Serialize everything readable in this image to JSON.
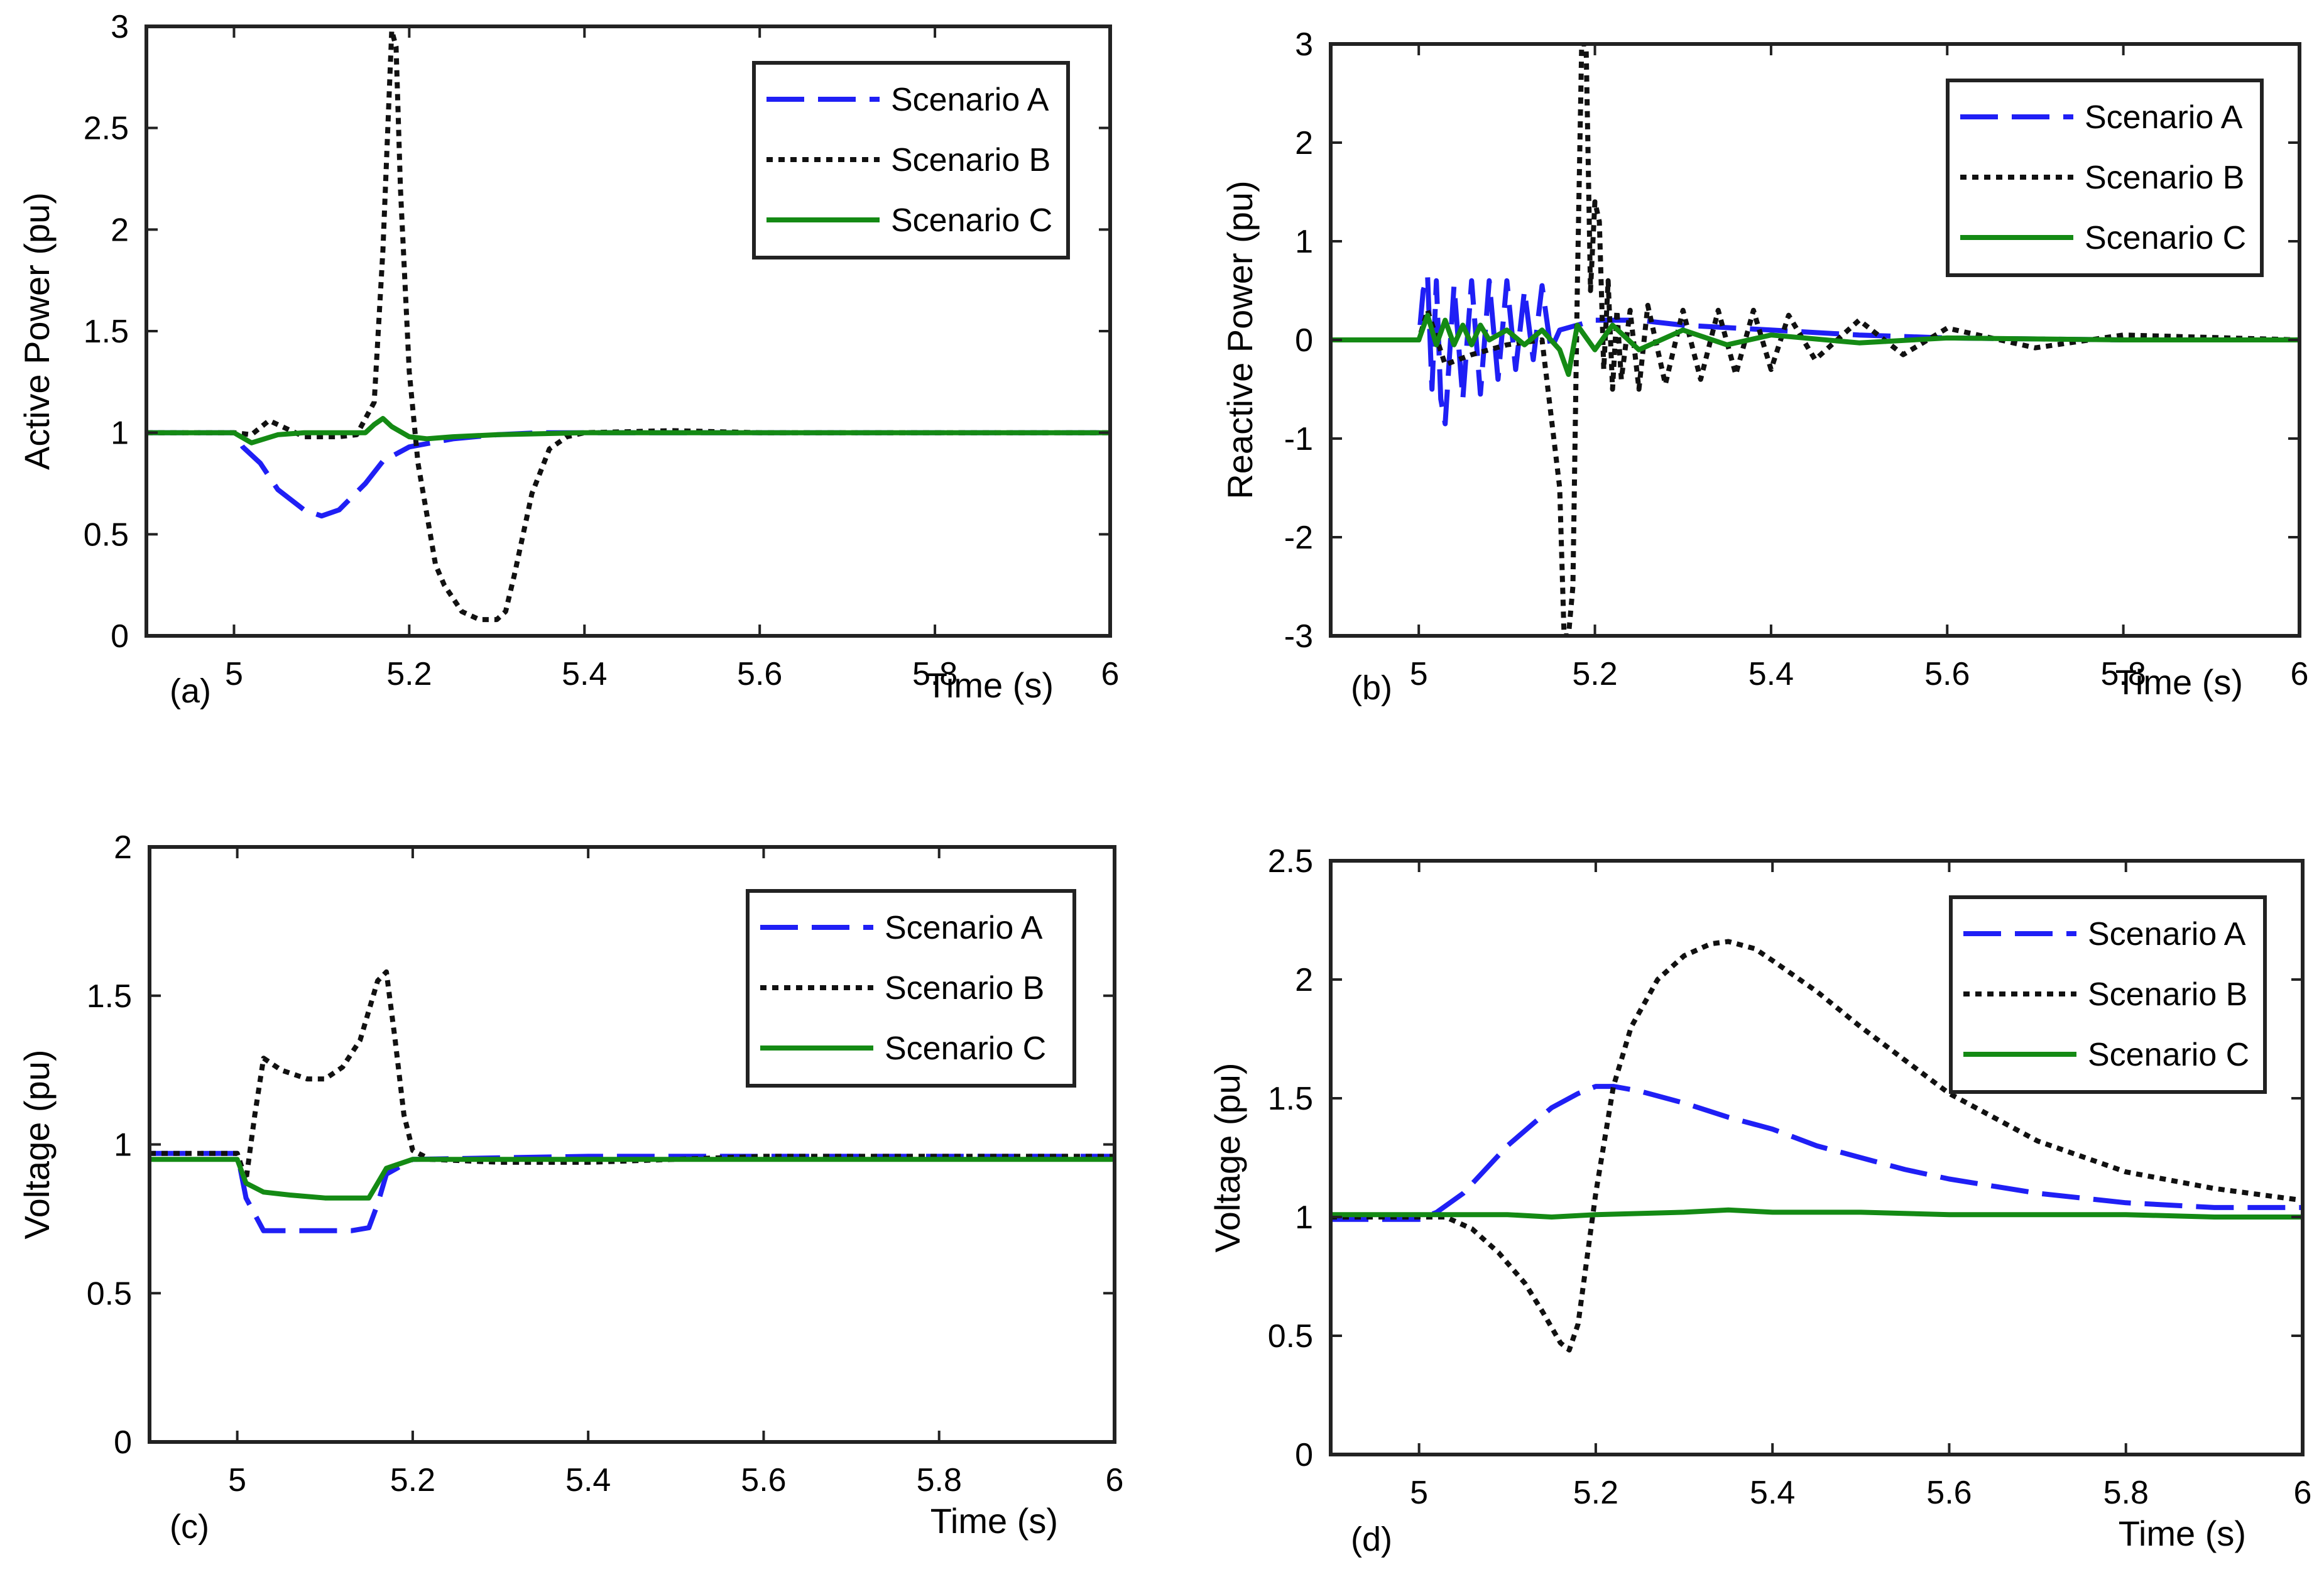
{
  "figure": {
    "series_names": [
      "Scenario A",
      "Scenario B",
      "Scenario C"
    ],
    "series_styles": [
      {
        "color": "#1f1ff5",
        "dash": "dashed"
      },
      {
        "color": "#111111",
        "dash": "dotted"
      },
      {
        "color": "#148a14",
        "dash": "solid"
      }
    ]
  },
  "chart_data": [
    {
      "type": "line",
      "panel_label": "(a)",
      "title": "",
      "xlabel": "Time (s)",
      "ylabel": "Active Power (pu)",
      "xlim": [
        4.9,
        6.0
      ],
      "ylim": [
        0,
        3
      ],
      "xticks": [
        5,
        5.2,
        5.4,
        5.6,
        5.8,
        6
      ],
      "xtick_labels": [
        "5",
        "5.2",
        "5.4",
        "5.6",
        "5.8",
        "6"
      ],
      "yticks": [
        0,
        0.5,
        1,
        1.5,
        2,
        2.5,
        3
      ],
      "ytick_labels": [
        "0",
        "0.5",
        "1",
        "1.5",
        "2",
        "2.5",
        "3"
      ],
      "legend": {
        "position": "top-right",
        "entries": [
          "Scenario A",
          "Scenario B",
          "Scenario C"
        ]
      },
      "series": [
        {
          "name": "Scenario A",
          "x": [
            4.9,
            5.0,
            5.01,
            5.03,
            5.05,
            5.08,
            5.1,
            5.12,
            5.15,
            5.17,
            5.2,
            5.25,
            5.3,
            5.35,
            5.4,
            5.6,
            5.8,
            6.0
          ],
          "y": [
            1.0,
            1.0,
            0.93,
            0.85,
            0.72,
            0.62,
            0.59,
            0.62,
            0.75,
            0.86,
            0.93,
            0.97,
            0.99,
            1.0,
            1.0,
            1.0,
            1.0,
            1.0
          ]
        },
        {
          "name": "Scenario B",
          "x": [
            4.9,
            5.0,
            5.02,
            5.04,
            5.06,
            5.08,
            5.1,
            5.12,
            5.14,
            5.16,
            5.17,
            5.18,
            5.185,
            5.19,
            5.2,
            5.21,
            5.22,
            5.23,
            5.24,
            5.26,
            5.28,
            5.3,
            5.31,
            5.32,
            5.34,
            5.36,
            5.38,
            5.4,
            5.5,
            5.6,
            5.8,
            6.0
          ],
          "y": [
            1.0,
            1.0,
            0.99,
            1.06,
            1.02,
            0.98,
            0.98,
            0.98,
            0.99,
            1.15,
            1.9,
            2.98,
            2.9,
            2.2,
            1.3,
            0.85,
            0.6,
            0.35,
            0.25,
            0.12,
            0.08,
            0.08,
            0.12,
            0.3,
            0.7,
            0.92,
            0.98,
            1.0,
            1.01,
            1.0,
            1.0,
            1.0
          ]
        },
        {
          "name": "Scenario C",
          "x": [
            4.9,
            5.0,
            5.02,
            5.05,
            5.08,
            5.1,
            5.15,
            5.16,
            5.17,
            5.18,
            5.2,
            5.22,
            5.25,
            5.3,
            5.4,
            5.6,
            5.8,
            6.0
          ],
          "y": [
            1.0,
            1.0,
            0.95,
            0.99,
            1.0,
            1.0,
            1.0,
            1.04,
            1.07,
            1.03,
            0.98,
            0.97,
            0.98,
            0.99,
            1.0,
            1.0,
            1.0,
            1.0
          ]
        }
      ]
    },
    {
      "type": "line",
      "panel_label": "(b)",
      "title": "",
      "xlabel": "Time (s)",
      "ylabel": "Reactive Power (pu)",
      "xlim": [
        4.9,
        6.0
      ],
      "ylim": [
        -3,
        3
      ],
      "xticks": [
        5,
        5.2,
        5.4,
        5.6,
        5.8,
        6
      ],
      "xtick_labels": [
        "5",
        "5.2",
        "5.4",
        "5.6",
        "5.8",
        "6"
      ],
      "yticks": [
        -3,
        -2,
        -1,
        0,
        1,
        2,
        3
      ],
      "ytick_labels": [
        "-3",
        "-2",
        "-1",
        "0",
        "1",
        "2",
        "3"
      ],
      "legend": {
        "position": "top-right",
        "entries": [
          "Scenario A",
          "Scenario B",
          "Scenario C"
        ]
      },
      "series": [
        {
          "name": "Scenario A",
          "x": [
            4.9,
            5.0,
            5.005,
            5.01,
            5.015,
            5.02,
            5.025,
            5.03,
            5.04,
            5.05,
            5.06,
            5.07,
            5.08,
            5.09,
            5.1,
            5.11,
            5.12,
            5.13,
            5.14,
            5.15,
            5.16,
            5.18,
            5.2,
            5.25,
            5.3,
            5.4,
            5.5,
            5.6,
            5.8,
            6.0
          ],
          "y": [
            0.0,
            0.0,
            0.5,
            0.65,
            -0.5,
            0.6,
            -0.6,
            -0.85,
            0.55,
            -0.6,
            0.6,
            -0.55,
            0.6,
            -0.4,
            0.6,
            -0.3,
            0.5,
            -0.2,
            0.55,
            -0.1,
            0.1,
            0.15,
            0.2,
            0.2,
            0.15,
            0.1,
            0.05,
            0.02,
            0.0,
            0.0
          ]
        },
        {
          "name": "Scenario B",
          "x": [
            4.9,
            5.0,
            5.01,
            5.03,
            5.06,
            5.1,
            5.14,
            5.16,
            5.165,
            5.17,
            5.175,
            5.18,
            5.185,
            5.19,
            5.195,
            5.2,
            5.205,
            5.21,
            5.215,
            5.22,
            5.225,
            5.23,
            5.24,
            5.25,
            5.26,
            5.28,
            5.3,
            5.32,
            5.34,
            5.36,
            5.38,
            5.4,
            5.42,
            5.45,
            5.5,
            5.55,
            5.6,
            5.7,
            5.8,
            6.0
          ],
          "y": [
            0.0,
            0.0,
            0.3,
            -0.25,
            -0.15,
            -0.05,
            0.0,
            -1.5,
            -3.0,
            -3.0,
            -2.5,
            0.5,
            3.0,
            3.0,
            0.5,
            1.4,
            1.2,
            -0.3,
            0.6,
            -0.5,
            0.3,
            -0.4,
            0.3,
            -0.5,
            0.35,
            -0.45,
            0.3,
            -0.4,
            0.3,
            -0.35,
            0.3,
            -0.3,
            0.25,
            -0.2,
            0.2,
            -0.15,
            0.12,
            -0.08,
            0.05,
            0.0
          ]
        },
        {
          "name": "Scenario C",
          "x": [
            4.9,
            5.0,
            5.01,
            5.02,
            5.03,
            5.04,
            5.05,
            5.06,
            5.07,
            5.08,
            5.1,
            5.12,
            5.14,
            5.16,
            5.17,
            5.18,
            5.2,
            5.22,
            5.25,
            5.3,
            5.35,
            5.4,
            5.5,
            5.6,
            5.8,
            6.0
          ],
          "y": [
            0.0,
            0.0,
            0.25,
            -0.05,
            0.2,
            -0.05,
            0.15,
            -0.05,
            0.15,
            0.0,
            0.1,
            -0.05,
            0.1,
            -0.1,
            -0.35,
            0.15,
            -0.1,
            0.15,
            -0.1,
            0.1,
            -0.05,
            0.05,
            -0.03,
            0.02,
            0.0,
            0.0
          ]
        }
      ]
    },
    {
      "type": "line",
      "panel_label": "(c)",
      "title": "",
      "xlabel": "Time (s)",
      "ylabel": "Voltage (pu)",
      "xlim": [
        4.9,
        6.0
      ],
      "ylim": [
        0,
        2
      ],
      "xticks": [
        5,
        5.2,
        5.4,
        5.6,
        5.8,
        6
      ],
      "xtick_labels": [
        "5",
        "5.2",
        "5.4",
        "5.6",
        "5.8",
        "6"
      ],
      "yticks": [
        0,
        0.5,
        1,
        1.5,
        2
      ],
      "ytick_labels": [
        "0",
        "0.5",
        "1",
        "1.5",
        "2"
      ],
      "legend": {
        "position": "top-right",
        "entries": [
          "Scenario A",
          "Scenario B",
          "Scenario  C"
        ]
      },
      "series": [
        {
          "name": "Scenario A",
          "x": [
            4.9,
            5.0,
            5.01,
            5.03,
            5.06,
            5.1,
            5.13,
            5.15,
            5.16,
            5.17,
            5.2,
            5.4,
            5.6,
            5.8,
            6.0
          ],
          "y": [
            0.97,
            0.97,
            0.82,
            0.71,
            0.71,
            0.71,
            0.71,
            0.72,
            0.8,
            0.9,
            0.95,
            0.96,
            0.96,
            0.96,
            0.96
          ]
        },
        {
          "name": "Scenario B",
          "x": [
            4.9,
            5.0,
            5.01,
            5.02,
            5.03,
            5.05,
            5.08,
            5.1,
            5.12,
            5.14,
            5.16,
            5.17,
            5.18,
            5.19,
            5.2,
            5.22,
            5.3,
            5.4,
            5.6,
            5.8,
            6.0
          ],
          "y": [
            0.97,
            0.97,
            0.88,
            1.1,
            1.29,
            1.25,
            1.22,
            1.22,
            1.26,
            1.35,
            1.55,
            1.58,
            1.35,
            1.1,
            0.98,
            0.95,
            0.94,
            0.94,
            0.96,
            0.96,
            0.96
          ]
        },
        {
          "name": "Scenario C",
          "x": [
            4.9,
            5.0,
            5.01,
            5.03,
            5.06,
            5.1,
            5.13,
            5.15,
            5.16,
            5.17,
            5.2,
            5.4,
            5.6,
            5.8,
            6.0
          ],
          "y": [
            0.95,
            0.95,
            0.87,
            0.84,
            0.83,
            0.82,
            0.82,
            0.82,
            0.87,
            0.92,
            0.95,
            0.95,
            0.95,
            0.95,
            0.95
          ]
        }
      ]
    },
    {
      "type": "line",
      "panel_label": "(d)",
      "title": "",
      "xlabel": "Time (s)",
      "ylabel": "Voltage (pu)",
      "xlim": [
        4.9,
        6.0
      ],
      "ylim": [
        0,
        2.5
      ],
      "xticks": [
        5,
        5.2,
        5.4,
        5.6,
        5.8,
        6
      ],
      "xtick_labels": [
        "5",
        "5.2",
        "5.4",
        "5.6",
        "5.8",
        "6"
      ],
      "yticks": [
        0,
        0.5,
        1,
        1.5,
        2,
        2.5
      ],
      "ytick_labels": [
        "0",
        "0.5",
        "1",
        "1.5",
        "2",
        "2.5"
      ],
      "legend": {
        "position": "top-right",
        "entries": [
          "Scenario A",
          "Scenario B",
          "Scenario C"
        ]
      },
      "series": [
        {
          "name": "Scenario A",
          "x": [
            4.9,
            5.0,
            5.02,
            5.05,
            5.1,
            5.15,
            5.18,
            5.2,
            5.22,
            5.25,
            5.3,
            5.35,
            5.4,
            5.45,
            5.5,
            5.55,
            5.6,
            5.7,
            5.8,
            5.9,
            6.0
          ],
          "y": [
            0.99,
            0.99,
            1.02,
            1.1,
            1.3,
            1.46,
            1.52,
            1.55,
            1.55,
            1.53,
            1.48,
            1.42,
            1.37,
            1.3,
            1.25,
            1.2,
            1.16,
            1.1,
            1.06,
            1.04,
            1.04
          ]
        },
        {
          "name": "Scenario B",
          "x": [
            4.9,
            5.0,
            5.03,
            5.06,
            5.09,
            5.12,
            5.14,
            5.16,
            5.17,
            5.18,
            5.2,
            5.22,
            5.24,
            5.27,
            5.3,
            5.33,
            5.35,
            5.38,
            5.4,
            5.45,
            5.5,
            5.55,
            5.6,
            5.7,
            5.8,
            5.9,
            6.0
          ],
          "y": [
            1.0,
            1.0,
            1.0,
            0.95,
            0.85,
            0.72,
            0.6,
            0.47,
            0.44,
            0.55,
            1.1,
            1.55,
            1.8,
            2.0,
            2.1,
            2.15,
            2.16,
            2.13,
            2.08,
            1.95,
            1.8,
            1.66,
            1.52,
            1.32,
            1.19,
            1.12,
            1.07
          ]
        },
        {
          "name": "Scenario C",
          "x": [
            4.9,
            5.0,
            5.1,
            5.15,
            5.2,
            5.3,
            5.35,
            5.4,
            5.5,
            5.6,
            5.7,
            5.8,
            5.9,
            6.0
          ],
          "y": [
            1.01,
            1.01,
            1.01,
            1.0,
            1.01,
            1.02,
            1.03,
            1.02,
            1.02,
            1.01,
            1.01,
            1.01,
            1.0,
            1.0
          ]
        }
      ]
    }
  ]
}
